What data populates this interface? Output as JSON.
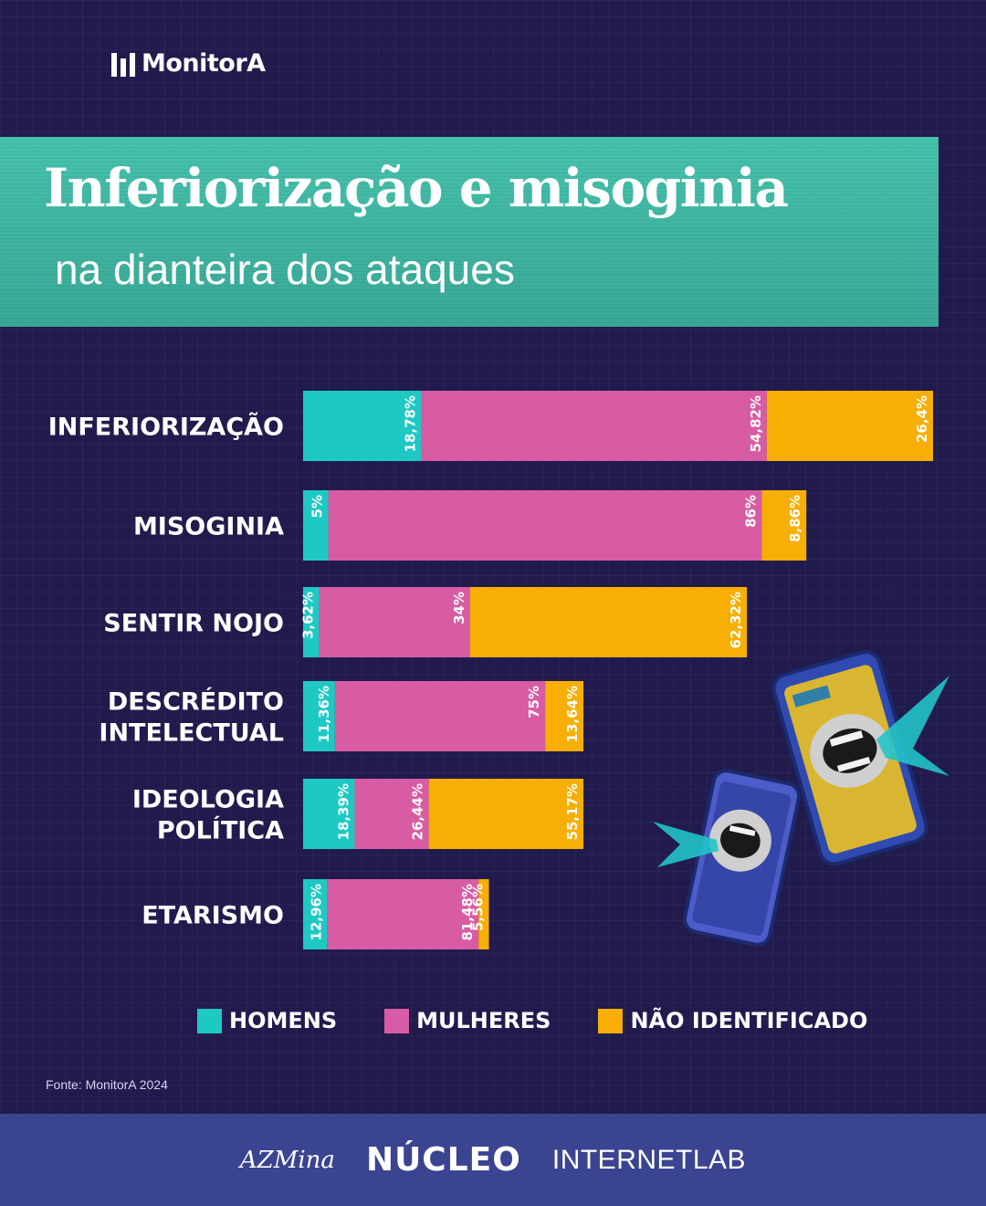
{
  "brand": {
    "name": "MonitorA"
  },
  "header": {
    "title": "Inferiorização e misoginia",
    "subtitle": "na dianteira dos ataques"
  },
  "colors": {
    "homens": "#1fc9c3",
    "mulheres": "#d85ca3",
    "nao_identificado": "#f7ae05"
  },
  "chart_data": {
    "type": "bar",
    "orientation": "horizontal",
    "stacked": true,
    "categories": [
      "INFERIORIZAÇÃO",
      "MISOGINIA",
      "SENTIR NOJO",
      "DESCRÉDITO INTELECTUAL",
      "IDEOLOGIA POLÍTICA",
      "ETARISMO"
    ],
    "category_lines": [
      [
        "INFERIORIZAÇÃO"
      ],
      [
        "MISOGINIA"
      ],
      [
        "SENTIR NOJO"
      ],
      [
        "DESCRÉDITO",
        "INTELECTUAL"
      ],
      [
        "IDEOLOGIA",
        "POLÍTICA"
      ],
      [
        "ETARISMO"
      ]
    ],
    "totals_relative": [
      1.0,
      0.8,
      0.705,
      0.445,
      0.445,
      0.295
    ],
    "series": [
      {
        "name": "HOMENS",
        "color": "#1fc9c3",
        "values": [
          18.78,
          5,
          3.62,
          11.36,
          18.39,
          12.96
        ],
        "labels": [
          "18,78%",
          "5%",
          "3,62%",
          "11,36%",
          "18,39%",
          "12,96%"
        ]
      },
      {
        "name": "MULHERES",
        "color": "#d85ca3",
        "values": [
          54.82,
          86,
          34,
          75,
          26.44,
          81.48
        ],
        "labels": [
          "54,82%",
          "86%",
          "34%",
          "75%",
          "26,44%",
          "81,48%"
        ]
      },
      {
        "name": "NÃO IDENTIFICADO",
        "color": "#f7ae05",
        "values": [
          26.4,
          8.86,
          62.32,
          13.64,
          55.17,
          5.56
        ],
        "labels": [
          "26,4%",
          "8,86%",
          "62,32%",
          "13,64%",
          "55,17%",
          "5,56%"
        ]
      }
    ]
  },
  "legend": [
    {
      "label": "HOMENS",
      "color": "#1fc9c3"
    },
    {
      "label": "MULHERES",
      "color": "#d85ca3"
    },
    {
      "label": "NÃO IDENTIFICADO",
      "color": "#f7ae05"
    }
  ],
  "source": "Fonte: MonitorA 2024",
  "footer": {
    "logos": [
      "AZMina",
      "NÚCLEO",
      "INTERNETLAB"
    ]
  },
  "decorations": [
    "phone-mouth-illustration-icon",
    "phone-mouth-illustration-icon"
  ]
}
